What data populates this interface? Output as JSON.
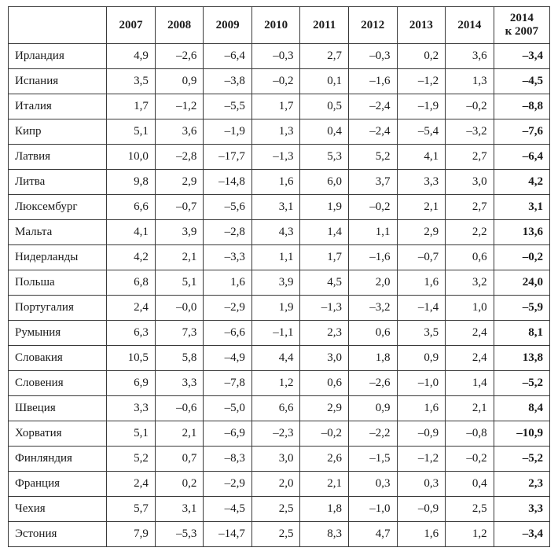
{
  "table": {
    "header_country": "",
    "years": [
      "2007",
      "2008",
      "2009",
      "2010",
      "2011",
      "2012",
      "2013",
      "2014"
    ],
    "last_col_line1": "2014",
    "last_col_line2": "к 2007",
    "rows": [
      {
        "country": "Ирландия",
        "vals": [
          "4,9",
          "–2,6",
          "–6,4",
          "–0,3",
          "2,7",
          "–0,3",
          "0,2",
          "3,6"
        ],
        "last": "–3,4"
      },
      {
        "country": "Испания",
        "vals": [
          "3,5",
          "0,9",
          "–3,8",
          "–0,2",
          "0,1",
          "–1,6",
          "–1,2",
          "1,3"
        ],
        "last": "–4,5"
      },
      {
        "country": "Италия",
        "vals": [
          "1,7",
          "–1,2",
          "–5,5",
          "1,7",
          "0,5",
          "–2,4",
          "–1,9",
          "–0,2"
        ],
        "last": "–8,8"
      },
      {
        "country": "Кипр",
        "vals": [
          "5,1",
          "3,6",
          "–1,9",
          "1,3",
          "0,4",
          "–2,4",
          "–5,4",
          "–3,2"
        ],
        "last": "–7,6"
      },
      {
        "country": "Латвия",
        "vals": [
          "10,0",
          "–2,8",
          "–17,7",
          "–1,3",
          "5,3",
          "5,2",
          "4,1",
          "2,7"
        ],
        "last": "–6,4"
      },
      {
        "country": "Литва",
        "vals": [
          "9,8",
          "2,9",
          "–14,8",
          "1,6",
          "6,0",
          "3,7",
          "3,3",
          "3,0"
        ],
        "last": "4,2"
      },
      {
        "country": "Люксембург",
        "vals": [
          "6,6",
          "–0,7",
          "–5,6",
          "3,1",
          "1,9",
          "–0,2",
          "2,1",
          "2,7"
        ],
        "last": "3,1"
      },
      {
        "country": "Мальта",
        "vals": [
          "4,1",
          "3,9",
          "–2,8",
          "4,3",
          "1,4",
          "1,1",
          "2,9",
          "2,2"
        ],
        "last": "13,6"
      },
      {
        "country": "Нидерланды",
        "vals": [
          "4,2",
          "2,1",
          "–3,3",
          "1,1",
          "1,7",
          "–1,6",
          "–0,7",
          "0,6"
        ],
        "last": "–0,2"
      },
      {
        "country": "Польша",
        "vals": [
          "6,8",
          "5,1",
          "1,6",
          "3,9",
          "4,5",
          "2,0",
          "1,6",
          "3,2"
        ],
        "last": "24,0"
      },
      {
        "country": "Португалия",
        "vals": [
          "2,4",
          "–0,0",
          "–2,9",
          "1,9",
          "–1,3",
          "–3,2",
          "–1,4",
          "1,0"
        ],
        "last": "–5,9"
      },
      {
        "country": "Румыния",
        "vals": [
          "6,3",
          "7,3",
          "–6,6",
          "–1,1",
          "2,3",
          "0,6",
          "3,5",
          "2,4"
        ],
        "last": "8,1"
      },
      {
        "country": "Словакия",
        "vals": [
          "10,5",
          "5,8",
          "–4,9",
          "4,4",
          "3,0",
          "1,8",
          "0,9",
          "2,4"
        ],
        "last": "13,8"
      },
      {
        "country": "Словения",
        "vals": [
          "6,9",
          "3,3",
          "–7,8",
          "1,2",
          "0,6",
          "–2,6",
          "–1,0",
          "1,4"
        ],
        "last": "–5,2"
      },
      {
        "country": "Швеция",
        "vals": [
          "3,3",
          "–0,6",
          "–5,0",
          "6,6",
          "2,9",
          "0,9",
          "1,6",
          "2,1"
        ],
        "last": "8,4"
      },
      {
        "country": "Хорватия",
        "vals": [
          "5,1",
          "2,1",
          "–6,9",
          "–2,3",
          "–0,2",
          "–2,2",
          "–0,9",
          "–0,8"
        ],
        "last": "–10,9"
      },
      {
        "country": "Финляндия",
        "vals": [
          "5,2",
          "0,7",
          "–8,3",
          "3,0",
          "2,6",
          "–1,5",
          "–1,2",
          "–0,2"
        ],
        "last": "–5,2"
      },
      {
        "country": "Франция",
        "vals": [
          "2,4",
          "0,2",
          "–2,9",
          "2,0",
          "2,1",
          "0,3",
          "0,3",
          "0,4"
        ],
        "last": "2,3"
      },
      {
        "country": "Чехия",
        "vals": [
          "5,7",
          "3,1",
          "–4,5",
          "2,5",
          "1,8",
          "–1,0",
          "–0,9",
          "2,5"
        ],
        "last": "3,3"
      },
      {
        "country": "Эстония",
        "vals": [
          "7,9",
          "–5,3",
          "–14,7",
          "2,5",
          "8,3",
          "4,7",
          "1,6",
          "1,2"
        ],
        "last": "–3,4"
      }
    ],
    "colors": {
      "border": "#3a3a3a",
      "text": "#1a1a1a",
      "background": "#ffffff"
    }
  }
}
